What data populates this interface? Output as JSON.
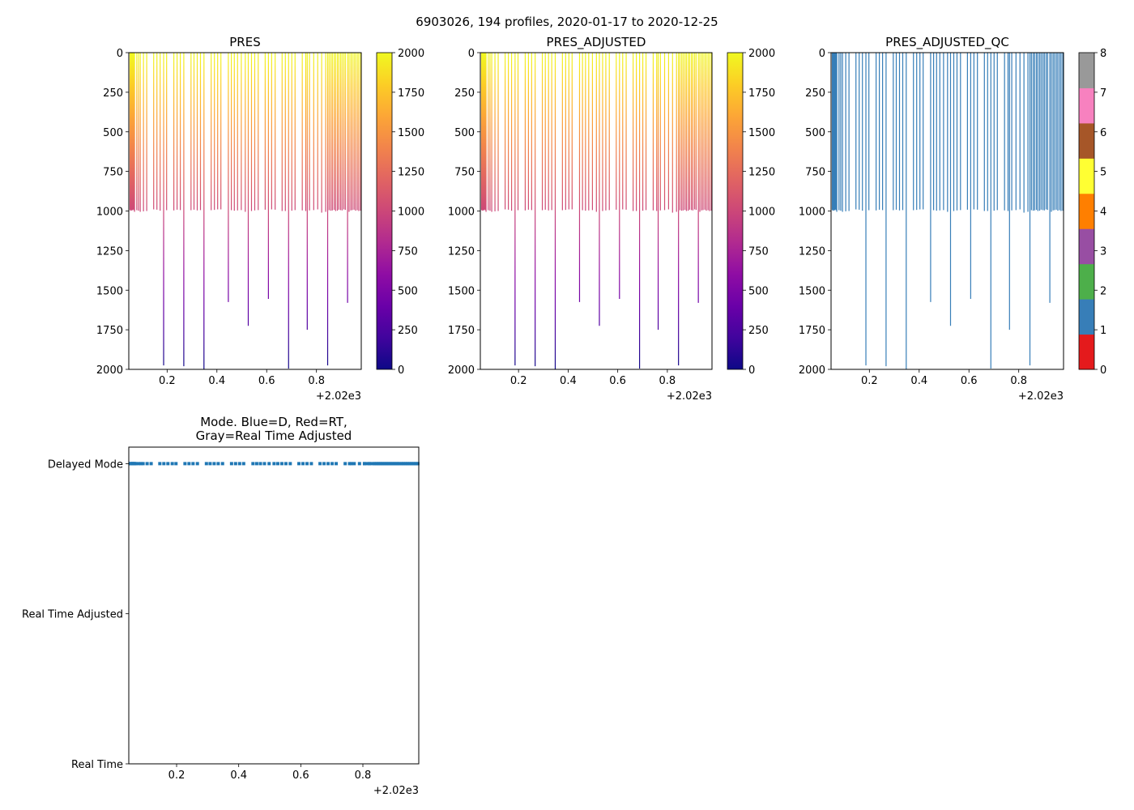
{
  "figure_title": "6903026, 194 profiles, 2020-01-17 to 2020-12-25",
  "profiles": {
    "time_offset": [
      0.051,
      0.053,
      0.055,
      0.057,
      0.059,
      0.061,
      0.064,
      0.066,
      0.069,
      0.078,
      0.085,
      0.092,
      0.105,
      0.118,
      0.146,
      0.159,
      0.172,
      0.186,
      0.198,
      0.227,
      0.24,
      0.253,
      0.267,
      0.296,
      0.308,
      0.321,
      0.334,
      0.348,
      0.377,
      0.39,
      0.403,
      0.416,
      0.446,
      0.458,
      0.47,
      0.483,
      0.498,
      0.514,
      0.526,
      0.539,
      0.552,
      0.566,
      0.594,
      0.607,
      0.62,
      0.634,
      0.662,
      0.675,
      0.688,
      0.701,
      0.714,
      0.743,
      0.757,
      0.763,
      0.772,
      0.789,
      0.805,
      0.821,
      0.837,
      0.845,
      0.851,
      0.858,
      0.864,
      0.871,
      0.877,
      0.884,
      0.89,
      0.897,
      0.903,
      0.91,
      0.916,
      0.925,
      0.931,
      0.938,
      0.944,
      0.951,
      0.957,
      0.964,
      0.97,
      0.977
    ],
    "max_pres": [
      995,
      990,
      998,
      992,
      996,
      993,
      990,
      995,
      1005,
      995,
      998,
      1005,
      1002,
      1000,
      990,
      992,
      998,
      1975,
      995,
      996,
      992,
      994,
      1980,
      995,
      992,
      996,
      994,
      2000,
      995,
      993,
      990,
      990,
      1575,
      995,
      998,
      996,
      994,
      1005,
      1725,
      1000,
      996,
      994,
      992,
      1555,
      990,
      992,
      1000,
      1000,
      1995,
      998,
      994,
      996,
      1000,
      1750,
      996,
      994,
      990,
      1010,
      1005,
      1975,
      995,
      998,
      996,
      993,
      1000,
      998,
      992,
      994,
      996,
      990,
      993,
      1580,
      1005,
      996,
      994,
      992,
      998,
      995,
      1000,
      998
    ]
  },
  "chart_data": [
    {
      "type": "line",
      "title": "PRES",
      "xlabel": "",
      "ylabel": "",
      "x_offset_label": "+2.02e3",
      "xlim": [
        0.046,
        0.98
      ],
      "ylim": [
        2000,
        0
      ],
      "xticks": [
        "0.2",
        "0.4",
        "0.6",
        "0.8"
      ],
      "yticks": [
        "0",
        "250",
        "500",
        "750",
        "1000",
        "1250",
        "1500",
        "1750",
        "2000"
      ],
      "colorbar": {
        "range": [
          0,
          2000
        ],
        "ticks": [
          "0",
          "250",
          "500",
          "750",
          "1000",
          "1250",
          "1500",
          "1750",
          "2000"
        ],
        "colormap": "plasma_r"
      }
    },
    {
      "type": "line",
      "title": "PRES_ADJUSTED",
      "xlabel": "",
      "ylabel": "",
      "x_offset_label": "+2.02e3",
      "xlim": [
        0.046,
        0.98
      ],
      "ylim": [
        2000,
        0
      ],
      "xticks": [
        "0.2",
        "0.4",
        "0.6",
        "0.8"
      ],
      "yticks": [
        "0",
        "250",
        "500",
        "750",
        "1000",
        "1250",
        "1500",
        "1750",
        "2000"
      ],
      "colorbar": {
        "range": [
          0,
          2000
        ],
        "ticks": [
          "0",
          "250",
          "500",
          "750",
          "1000",
          "1250",
          "1500",
          "1750",
          "2000"
        ],
        "colormap": "plasma_r"
      }
    },
    {
      "type": "line",
      "title": "PRES_ADJUSTED_QC",
      "xlabel": "",
      "ylabel": "",
      "x_offset_label": "+2.02e3",
      "xlim": [
        0.046,
        0.98
      ],
      "ylim": [
        2000,
        0
      ],
      "xticks": [
        "0.2",
        "0.4",
        "0.6",
        "0.8"
      ],
      "yticks": [
        "0",
        "250",
        "500",
        "750",
        "1000",
        "1250",
        "1500",
        "1750",
        "2000"
      ],
      "qc_value": 1,
      "colorbar": {
        "range": [
          0,
          8
        ],
        "ticks": [
          "0",
          "1",
          "2",
          "3",
          "4",
          "5",
          "6",
          "7",
          "8"
        ],
        "colors": [
          "#e41a1c",
          "#377eb8",
          "#4daf4a",
          "#984ea3",
          "#ff7f00",
          "#ffff33",
          "#a65628",
          "#f781bf",
          "#999999"
        ]
      }
    },
    {
      "type": "scatter",
      "title_lines": [
        "Mode. Blue=D, Red=RT,",
        "Gray=Real Time Adjusted"
      ],
      "x_offset_label": "+2.02e3",
      "xlim": [
        0.046,
        0.98
      ],
      "ylim": [
        0,
        2.11
      ],
      "xticks": [
        "0.2",
        "0.4",
        "0.6",
        "0.8"
      ],
      "ytick_labels": [
        "Real Time",
        "Real Time Adjusted",
        "Delayed Mode"
      ],
      "mode_value": 2,
      "color": "#1f77b4"
    }
  ],
  "plasma_r_stops": [
    "#f0f921",
    "#fcce25",
    "#fca636",
    "#f2844b",
    "#e16462",
    "#cc4778",
    "#b12a90",
    "#8f0da4",
    "#6a00a8",
    "#41049d",
    "#0d0887"
  ]
}
